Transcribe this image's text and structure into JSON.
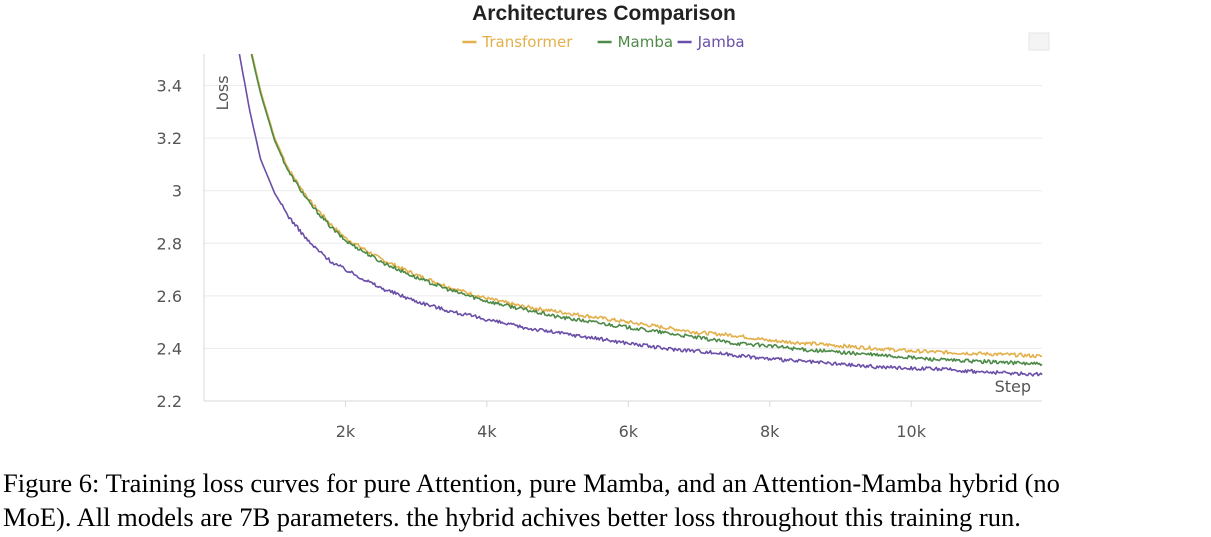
{
  "chart_data": {
    "type": "line",
    "title": "Architectures Comparison",
    "xlabel": "Step",
    "ylabel": "Loss",
    "xlim": [
      0,
      11850
    ],
    "ylim": [
      2.2,
      3.52
    ],
    "xticks": [
      2000,
      4000,
      6000,
      8000,
      10000
    ],
    "xtick_labels": [
      "2k",
      "4k",
      "6k",
      "8k",
      "10k"
    ],
    "yticks": [
      2.2,
      2.4,
      2.6,
      2.8,
      3.0,
      3.2,
      3.4
    ],
    "ytick_labels": [
      "2.2",
      "2.4",
      "2.6",
      "2.8",
      "3",
      "3.2",
      "3.4"
    ],
    "grid": true,
    "legend_position": "top-center",
    "series": [
      {
        "name": "Transformer",
        "color": "#e3b04b",
        "x": [
          680,
          800,
          1000,
          1200,
          1500,
          1800,
          2000,
          2500,
          3000,
          3500,
          4000,
          4500,
          5000,
          5500,
          6000,
          6500,
          7000,
          7500,
          8000,
          8500,
          9000,
          9500,
          10000,
          10500,
          11000,
          11500,
          11850
        ],
        "y": [
          3.52,
          3.38,
          3.2,
          3.08,
          2.96,
          2.87,
          2.82,
          2.74,
          2.68,
          2.63,
          2.59,
          2.56,
          2.54,
          2.52,
          2.5,
          2.48,
          2.46,
          2.45,
          2.43,
          2.42,
          2.41,
          2.4,
          2.39,
          2.385,
          2.38,
          2.375,
          2.37
        ]
      },
      {
        "name": "Mamba",
        "color": "#4e8a47",
        "x": [
          670,
          800,
          1000,
          1200,
          1500,
          1800,
          2000,
          2500,
          3000,
          3500,
          4000,
          4500,
          5000,
          5500,
          6000,
          6500,
          7000,
          7500,
          8000,
          8500,
          9000,
          9500,
          10000,
          10500,
          11000,
          11500,
          11850
        ],
        "y": [
          3.52,
          3.37,
          3.19,
          3.07,
          2.95,
          2.86,
          2.81,
          2.73,
          2.67,
          2.62,
          2.58,
          2.55,
          2.52,
          2.5,
          2.48,
          2.46,
          2.44,
          2.42,
          2.41,
          2.395,
          2.385,
          2.375,
          2.365,
          2.355,
          2.35,
          2.345,
          2.34
        ]
      },
      {
        "name": "Jamba",
        "color": "#6a4ea8",
        "x": [
          500,
          650,
          800,
          1000,
          1200,
          1500,
          1800,
          2000,
          2500,
          3000,
          3500,
          4000,
          4500,
          5000,
          5500,
          6000,
          6500,
          7000,
          7500,
          8000,
          8500,
          9000,
          9500,
          10000,
          10500,
          11000,
          11500,
          11850
        ],
        "y": [
          3.52,
          3.3,
          3.12,
          2.99,
          2.9,
          2.8,
          2.73,
          2.7,
          2.63,
          2.58,
          2.54,
          2.51,
          2.48,
          2.46,
          2.44,
          2.42,
          2.4,
          2.39,
          2.375,
          2.36,
          2.35,
          2.34,
          2.33,
          2.325,
          2.32,
          2.31,
          2.305,
          2.3
        ]
      }
    ]
  },
  "caption": {
    "line1": "Figure 6: Training loss curves for pure Attention, pure Mamba, and an Attention-Mamba hybrid (no",
    "line2": "MoE). All models are 7B parameters. the hybrid achives better loss throughout this training run."
  }
}
